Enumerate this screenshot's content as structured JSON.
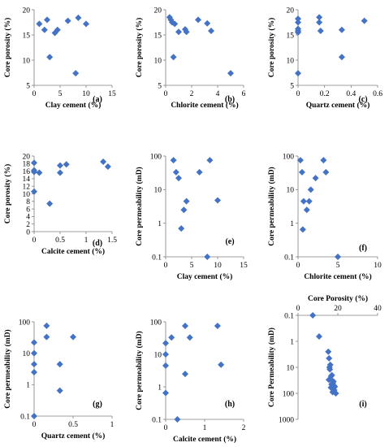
{
  "chart_data": [
    {
      "type": "scatter",
      "panel_label": "(a)",
      "xlabel": "Clay cement (%)",
      "ylabel": "Core porosity (%)",
      "xlim": [
        0,
        15
      ],
      "ylim": [
        5,
        20
      ],
      "yscale": "linear",
      "xticks": [
        "0",
        "5",
        "10",
        "15"
      ],
      "yticks": [
        "5",
        "10",
        "15",
        "20"
      ],
      "color": "#4472c4",
      "x": [
        1,
        2,
        2.5,
        3,
        4,
        4.5,
        6.5,
        8,
        8.5,
        10
      ],
      "y": [
        17.2,
        16,
        18,
        10.6,
        15.4,
        16,
        17.8,
        7.4,
        18.4,
        17.2
      ]
    },
    {
      "type": "scatter",
      "panel_label": "(b)",
      "xlabel": "Chlorite cement (%)",
      "ylabel": "Core porosity (%)",
      "xlim": [
        0,
        6
      ],
      "ylim": [
        5,
        20
      ],
      "yscale": "linear",
      "xticks": [
        "0",
        "2",
        "4",
        "6"
      ],
      "yticks": [
        "5",
        "10",
        "15",
        "20"
      ],
      "color": "#4472c4",
      "x": [
        0.3,
        0.4,
        0.5,
        0.6,
        0.7,
        1,
        1.5,
        1.6,
        2.5,
        3.2,
        3.5,
        5
      ],
      "y": [
        18.5,
        18,
        17.5,
        10.6,
        17.2,
        15.6,
        16.1,
        15.6,
        18,
        17.3,
        15.8,
        7.4
      ]
    },
    {
      "type": "scatter",
      "panel_label": "(c)",
      "xlabel": "Quartz cement (%)",
      "ylabel": "Core porosity (%)",
      "xlim": [
        0,
        0.6
      ],
      "ylim": [
        5,
        20
      ],
      "yscale": "linear",
      "xticks": [
        "0",
        "0.2",
        "0.4",
        "0.6"
      ],
      "yticks": [
        "5",
        "10",
        "15",
        "20"
      ],
      "color": "#4472c4",
      "x": [
        0,
        0,
        0,
        0,
        0,
        0,
        0.16,
        0.16,
        0.17,
        0.33,
        0.33,
        0.5
      ],
      "y": [
        18.2,
        17.5,
        16.2,
        15.5,
        15.8,
        7.4,
        18.5,
        17.5,
        15.8,
        16,
        10.6,
        17.8
      ]
    },
    {
      "type": "scatter",
      "panel_label": "(d)",
      "xlabel": "Calcite cement (%)",
      "ylabel": "Core porosity (%)",
      "xlim": [
        0,
        1.5
      ],
      "ylim": [
        0,
        20
      ],
      "yscale": "linear",
      "xticks": [
        "0",
        "0.5",
        "1",
        "1.5"
      ],
      "yticks": [
        "0",
        "2",
        "4",
        "6",
        "8",
        "10",
        "12",
        "14",
        "16",
        "18",
        "20"
      ],
      "color": "#4472c4",
      "x": [
        0,
        0,
        0,
        0,
        0.1,
        0.3,
        0.5,
        0.5,
        0.62,
        1.33,
        1.42
      ],
      "y": [
        18.2,
        16.2,
        15.8,
        10.6,
        15.6,
        7.4,
        15.6,
        17.5,
        17.8,
        18.5,
        17.2
      ]
    },
    {
      "type": "scatter",
      "panel_label": "(e)",
      "xlabel": "Clay cement (%)",
      "ylabel": "Core permeability  (mD)",
      "xlim": [
        0,
        15
      ],
      "ylim": [
        0.1,
        100
      ],
      "yscale": "log",
      "xticks": [
        "0",
        "5",
        "10",
        "15"
      ],
      "yticks": [
        "0.1",
        "1",
        "10",
        "100"
      ],
      "color": "#4472c4",
      "x": [
        1.5,
        2,
        2.5,
        3,
        3.5,
        4,
        6.5,
        8,
        8.5,
        10
      ],
      "y": [
        75,
        33,
        22,
        0.7,
        2.5,
        4.5,
        33,
        0.1,
        75,
        4.8
      ]
    },
    {
      "type": "scatter",
      "panel_label": "(f)",
      "xlabel": "Chlorite cement (%)",
      "ylabel": "Core permeability  (mD)",
      "xlim": [
        0,
        10
      ],
      "ylim": [
        0.1,
        100
      ],
      "yscale": "log",
      "xticks": [
        "0",
        "5",
        "10"
      ],
      "yticks": [
        "0.1",
        "1",
        "10",
        "100"
      ],
      "color": "#4472c4",
      "x": [
        0.3,
        0.5,
        0.6,
        0.7,
        1.1,
        1.4,
        1.6,
        2.2,
        3.2,
        3.5,
        5
      ],
      "y": [
        75,
        33,
        0.65,
        4.5,
        2.5,
        4.5,
        10,
        22,
        75,
        33,
        0.1
      ]
    },
    {
      "type": "scatter",
      "panel_label": "(g)",
      "xlabel": "Quartz cement (%)",
      "ylabel": "Core permeability  (mD)",
      "xlim": [
        0,
        1
      ],
      "ylim": [
        0.1,
        100
      ],
      "yscale": "log",
      "xticks": [
        "0",
        "0.5",
        "1"
      ],
      "yticks": [
        "0.1",
        "1",
        "10",
        "100"
      ],
      "color": "#4472c4",
      "x": [
        0,
        0,
        0,
        0,
        0,
        0.16,
        0.16,
        0.33,
        0.33,
        0.5
      ],
      "y": [
        22,
        10,
        4.5,
        2.5,
        0.1,
        75,
        33,
        4.5,
        0.65,
        33
      ]
    },
    {
      "type": "scatter",
      "panel_label": "(h)",
      "xlabel": "Calcite cement (%)",
      "ylabel": "Core permeability  (mD)",
      "xlim": [
        0,
        2
      ],
      "ylim": [
        0.1,
        100
      ],
      "yscale": "log",
      "xticks": [
        "0",
        "1",
        "2"
      ],
      "yticks": [
        "0.1",
        "1",
        "10",
        "100"
      ],
      "color": "#4472c4",
      "x": [
        0,
        0,
        0,
        0,
        0.15,
        0.3,
        0.5,
        0.5,
        0.62,
        1.33,
        1.42
      ],
      "y": [
        22,
        10,
        4.5,
        0.65,
        33,
        0.1,
        75,
        2.5,
        33,
        75,
        4.8
      ]
    },
    {
      "type": "scatter",
      "panel_label": "(i)",
      "xlabel": "Core Porosity (%)",
      "ylabel": "Core Permeability  (mD)",
      "xlim": [
        0,
        40
      ],
      "ylim": [
        0.1,
        1000
      ],
      "yscale": "log",
      "yreversed": true,
      "xaxis": "top",
      "xticks": [
        "0",
        "20",
        "40"
      ],
      "yticks": [
        "0.1",
        "1",
        "10",
        "100",
        "1000"
      ],
      "color": "#4472c4",
      "x": [
        7.4,
        10.6,
        15.2,
        15.6,
        15.8,
        16,
        16.2,
        16.6,
        17,
        17.2,
        17.5,
        17.8,
        18,
        18.2,
        15.5,
        16.5,
        18.5,
        17.4,
        19,
        16.8
      ],
      "y": [
        0.1,
        0.65,
        2.5,
        4.5,
        10,
        12,
        8,
        22,
        20,
        33,
        40,
        35,
        50,
        75,
        30,
        60,
        55,
        90,
        100,
        45
      ]
    }
  ]
}
